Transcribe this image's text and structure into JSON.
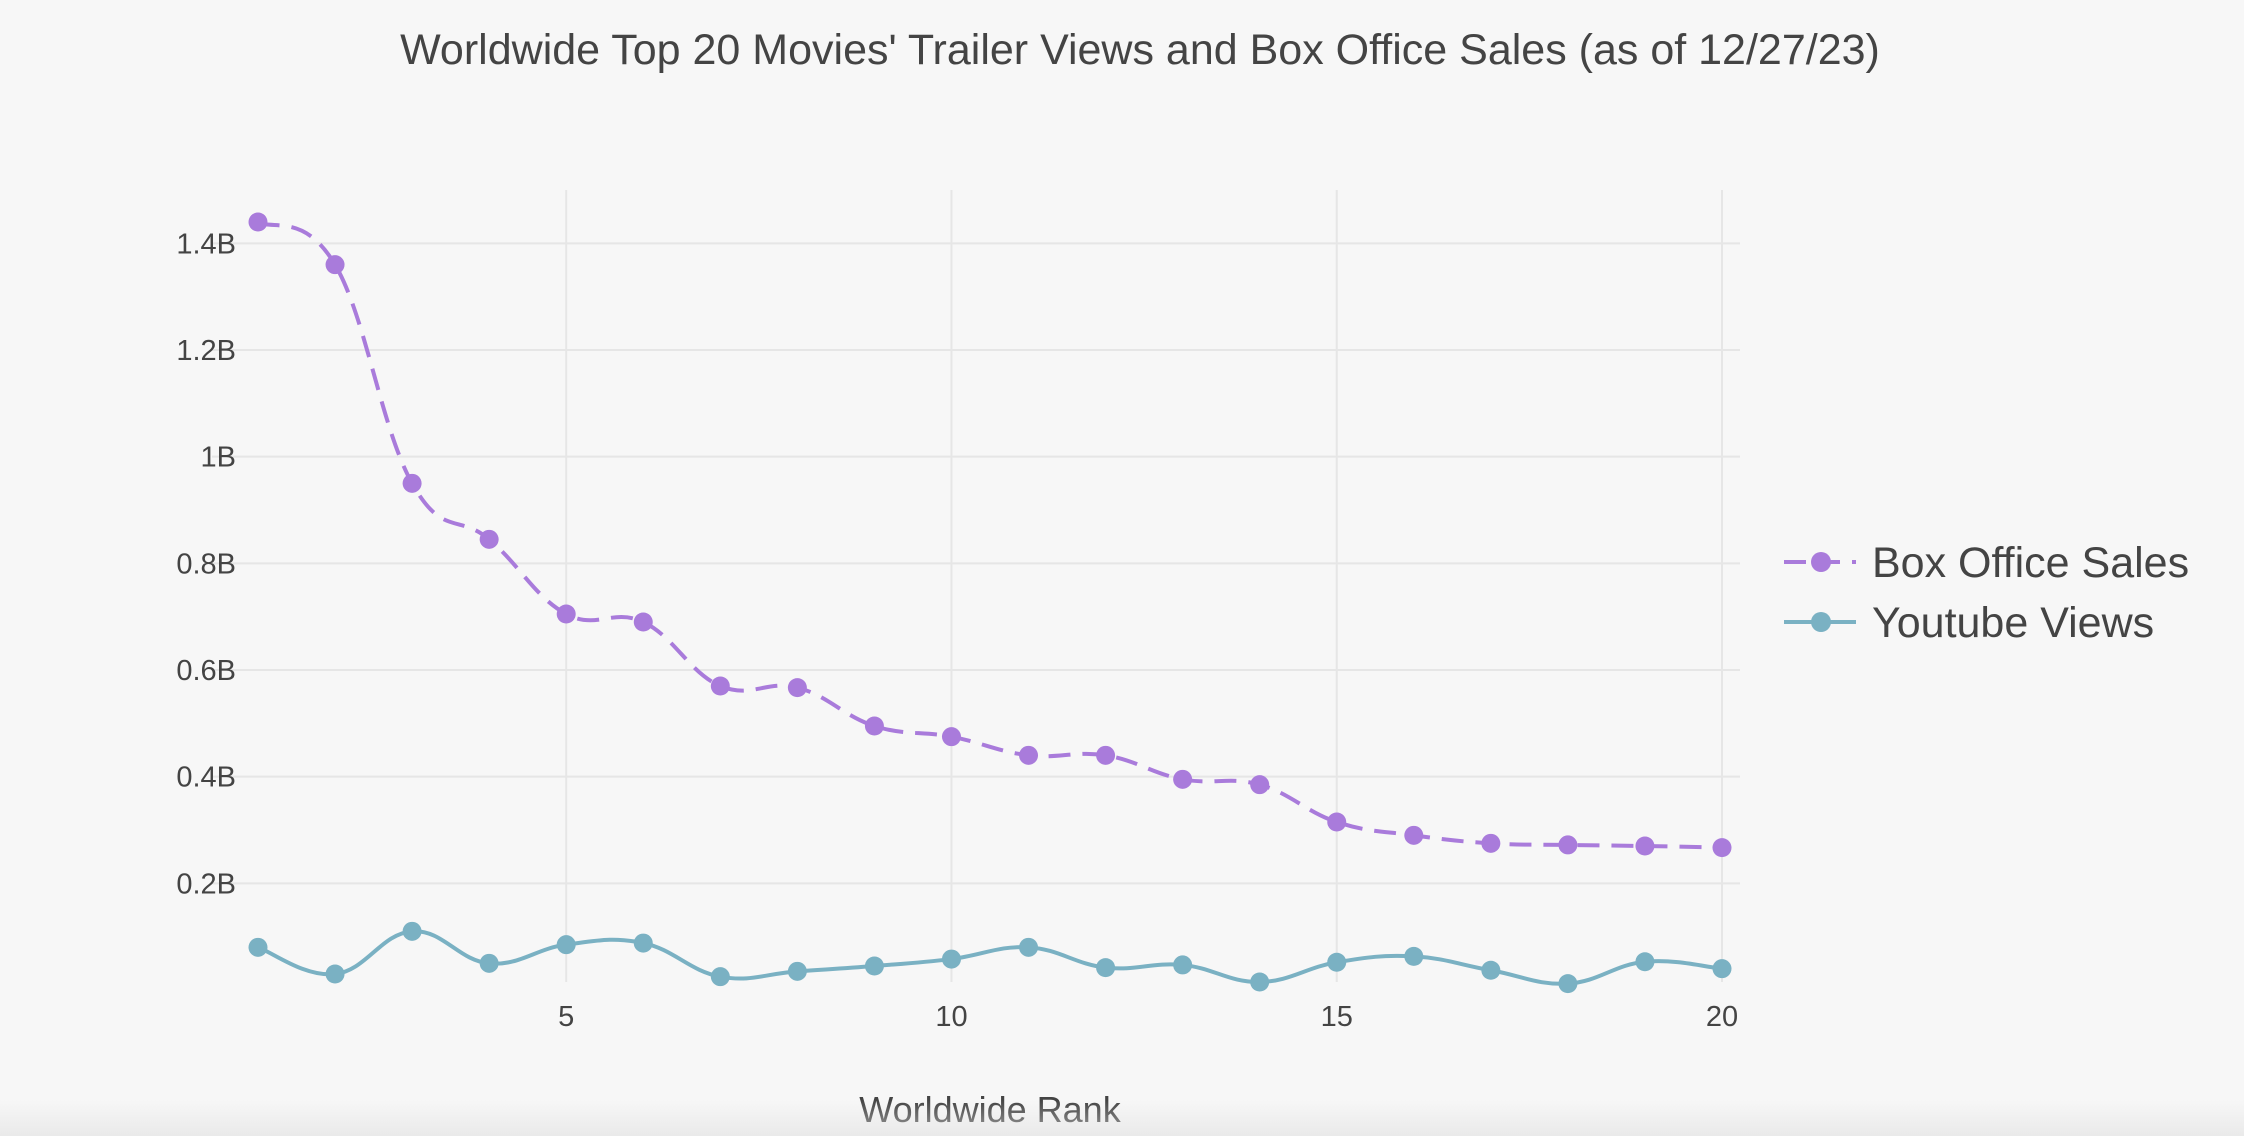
{
  "chart_data": {
    "type": "line",
    "title": "Worldwide Top 20 Movies' Trailer Views and Box Office Sales (as of 12/27/23)",
    "xlabel": "Worldwide Rank",
    "ylabel": "",
    "x": [
      1,
      2,
      3,
      4,
      5,
      6,
      7,
      8,
      9,
      10,
      11,
      12,
      13,
      14,
      15,
      16,
      17,
      18,
      19,
      20
    ],
    "xlim": [
      1,
      20
    ],
    "ylim": [
      0,
      1.5
    ],
    "x_ticks": [
      5,
      10,
      15,
      20
    ],
    "x_tick_labels": [
      "5",
      "10",
      "15",
      "20"
    ],
    "y_ticks": [
      0.2,
      0.4,
      0.6,
      0.8,
      1.0,
      1.2,
      1.4
    ],
    "y_tick_labels": [
      "0.2B",
      "0.4B",
      "0.6B",
      "0.8B",
      "1B",
      "1.2B",
      "1.4B"
    ],
    "grid": true,
    "legend_position": "right",
    "series": [
      {
        "name": "Box Office Sales",
        "color": "#a97bdb",
        "line_style": "dashed",
        "values": [
          1.44,
          1.36,
          0.95,
          0.845,
          0.705,
          0.69,
          0.57,
          0.567,
          0.495,
          0.475,
          0.44,
          0.44,
          0.395,
          0.385,
          0.315,
          0.29,
          0.275,
          0.272,
          0.27,
          0.267
        ]
      },
      {
        "name": "Youtube Views",
        "color": "#7ab1c3",
        "line_style": "solid",
        "values": [
          0.08,
          0.03,
          0.11,
          0.05,
          0.085,
          0.088,
          0.025,
          0.035,
          0.045,
          0.058,
          0.08,
          0.042,
          0.047,
          0.015,
          0.052,
          0.063,
          0.037,
          0.012,
          0.053,
          0.04
        ]
      }
    ]
  }
}
